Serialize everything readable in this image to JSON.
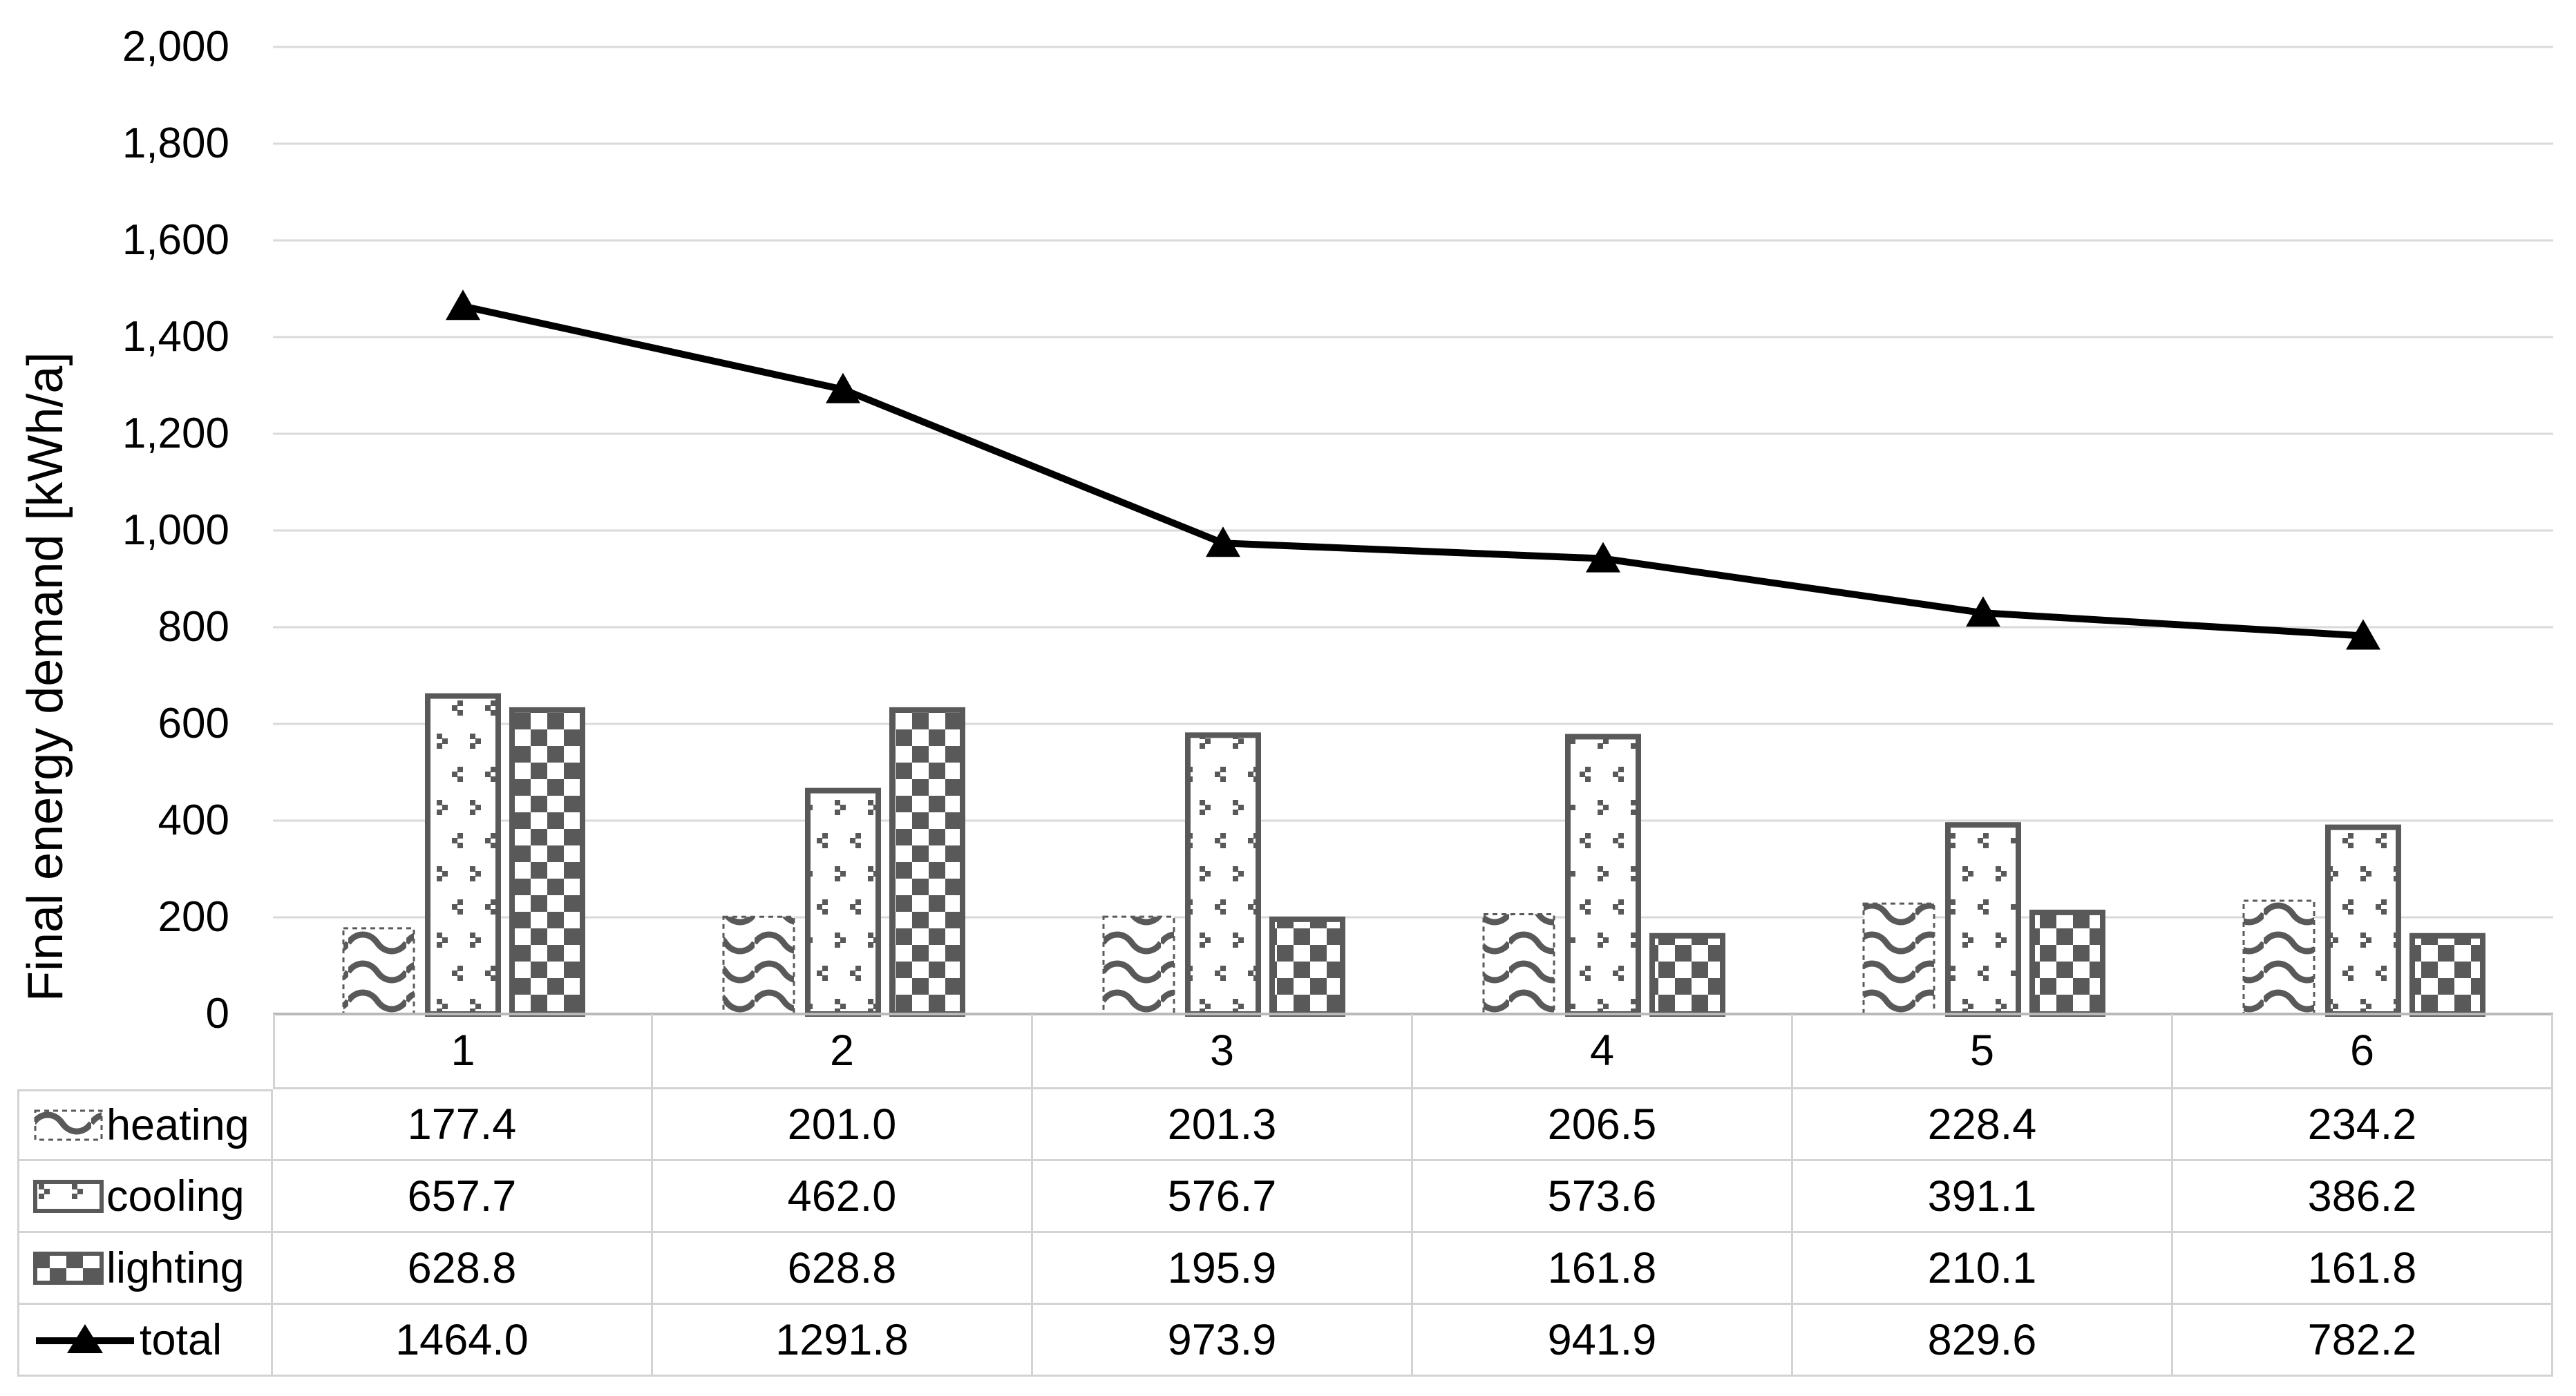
{
  "chart_data": {
    "type": "bar",
    "subtype": "clustered-bars-with-line-overlay",
    "title": "",
    "xlabel": "",
    "ylabel": "Final energy demand [kWh/a]",
    "categories": [
      "1",
      "2",
      "3",
      "4",
      "5",
      "6"
    ],
    "series": [
      {
        "name": "heating",
        "kind": "bar",
        "pattern": "wave",
        "values": [
          177.4,
          201.0,
          201.3,
          206.5,
          228.4,
          234.2
        ],
        "display": [
          "177.4",
          "201.0",
          "201.3",
          "206.5",
          "228.4",
          "234.2"
        ]
      },
      {
        "name": "cooling",
        "kind": "bar",
        "pattern": "divot",
        "values": [
          657.7,
          462.0,
          576.7,
          573.6,
          391.1,
          386.2
        ],
        "display": [
          "657.7",
          "462.0",
          "576.7",
          "573.6",
          "391.1",
          "386.2"
        ]
      },
      {
        "name": "lighting",
        "kind": "bar",
        "pattern": "checker",
        "values": [
          628.8,
          628.8,
          195.9,
          161.8,
          210.1,
          161.8
        ],
        "display": [
          "628.8",
          "628.8",
          "195.9",
          "161.8",
          "210.1",
          "161.8"
        ]
      },
      {
        "name": "total",
        "kind": "line",
        "marker": "triangle",
        "values": [
          1464.0,
          1291.8,
          973.9,
          941.9,
          829.6,
          782.2
        ],
        "display": [
          "1464.0",
          "1291.8",
          "973.9",
          "941.9",
          "829.6",
          "782.2"
        ]
      }
    ],
    "ylim": [
      0,
      2000
    ],
    "ytick_interval": 200,
    "ytick_labels": [
      "0",
      "200",
      "400",
      "600",
      "800",
      "1,000",
      "1,200",
      "1,400",
      "1,600",
      "1,800",
      "2,000"
    ],
    "grid": true,
    "legend_position": "data-table-left-column",
    "colors": {
      "pattern_foreground": "#595959",
      "bar_fill_background": "#ffffff",
      "line": "#000000",
      "marker": "#000000",
      "gridline": "#dadada",
      "table_border": "#d3d3d3",
      "axis_line": "#b9b9b9",
      "text": "#000000"
    }
  }
}
